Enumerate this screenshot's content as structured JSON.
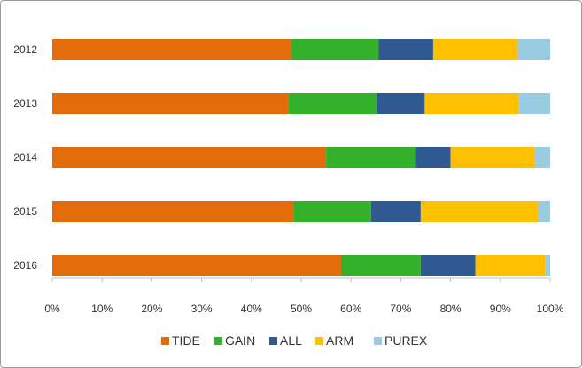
{
  "chart_data": {
    "type": "bar",
    "orientation": "horizontal",
    "stacked": true,
    "percent_stacked": true,
    "categories": [
      "2012",
      "2013",
      "2014",
      "2015",
      "2016"
    ],
    "series": [
      {
        "name": "TIDE",
        "color": "#E36C0A",
        "values": [
          48,
          47.5,
          55,
          48.5,
          58
        ]
      },
      {
        "name": "GAIN",
        "color": "#33B12A",
        "values": [
          17.5,
          17.8,
          18,
          15.5,
          16
        ]
      },
      {
        "name": "ALL",
        "color": "#2F5A91",
        "values": [
          11,
          9.5,
          7,
          10,
          11
        ]
      },
      {
        "name": "ARM",
        "color": "#FFC000",
        "values": [
          17,
          19,
          17,
          23.5,
          14
        ]
      },
      {
        "name": "PUREX",
        "color": "#99CCE0",
        "values": [
          6.5,
          6.2,
          3,
          2.5,
          1
        ]
      }
    ],
    "x_ticks": [
      "0%",
      "10%",
      "20%",
      "30%",
      "40%",
      "50%",
      "60%",
      "70%",
      "80%",
      "90%",
      "100%"
    ],
    "xlim": [
      0,
      100
    ],
    "legend_position": "bottom",
    "grid": false
  }
}
